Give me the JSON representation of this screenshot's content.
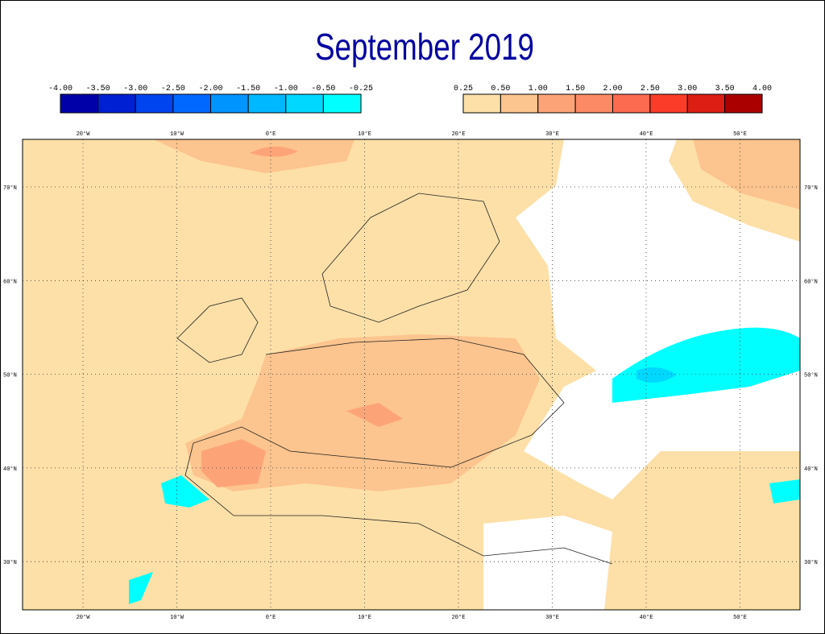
{
  "title": "September 2019",
  "legend": {
    "negative": {
      "labels": [
        "-4.00",
        "-3.50",
        "-3.00",
        "-2.50",
        "-2.00",
        "-1.50",
        "-1.00",
        "-0.50",
        "-0.25"
      ],
      "colors": [
        "#0000a8",
        "#0020d4",
        "#0044f0",
        "#0068ff",
        "#0094ff",
        "#00b8ff",
        "#00d8ff",
        "#00ffff"
      ]
    },
    "positive": {
      "labels": [
        "0.25",
        "0.50",
        "1.00",
        "1.50",
        "2.00",
        "2.50",
        "3.00",
        "3.50",
        "4.00"
      ],
      "colors": [
        "#fde0a8",
        "#fcc48e",
        "#fca478",
        "#fc8a64",
        "#fc6a50",
        "#fa3c28",
        "#dc1e14",
        "#aa0000"
      ]
    }
  },
  "longitudes": [
    "20°W",
    "10°W",
    "0°E",
    "10°E",
    "20°E",
    "30°E",
    "40°E",
    "50°E"
  ],
  "latitudes": [
    "70°N",
    "60°N",
    "50°N",
    "40°N",
    "30°N"
  ]
}
